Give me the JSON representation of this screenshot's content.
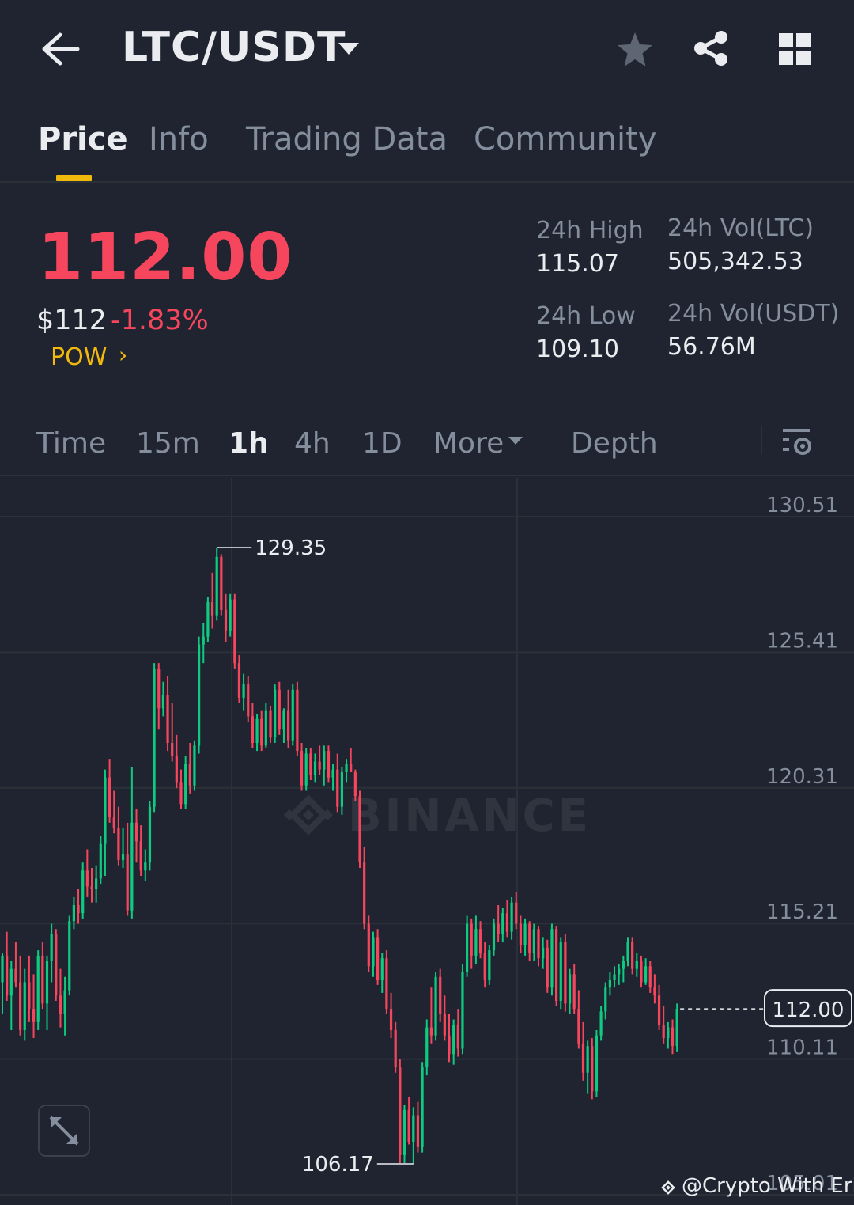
{
  "header": {
    "pair": "LTC/USDT",
    "back_icon": "arrow-left-icon",
    "favorite_icon": "star-icon",
    "share_icon": "share-icon",
    "layout_icon": "grid-icon"
  },
  "tabs": [
    {
      "label": "Price",
      "active": true
    },
    {
      "label": "Info",
      "active": false
    },
    {
      "label": "Trading Data",
      "active": false
    },
    {
      "label": "Community",
      "active": false
    }
  ],
  "ticker": {
    "last_price": "112.00",
    "usd_price": "$112",
    "change": "-1.83%",
    "tag": "POW",
    "tag_chevron": "›",
    "high_label": "24h High",
    "high_value": "115.07",
    "low_label": "24h Low",
    "low_value": "109.10",
    "vol_base_label": "24h Vol(LTC)",
    "vol_base_value": "505,342.53",
    "vol_quote_label": "24h Vol(USDT)",
    "vol_quote_value": "56.76M"
  },
  "intervals": [
    {
      "label": "Time",
      "active": false
    },
    {
      "label": "15m",
      "active": false
    },
    {
      "label": "1h",
      "active": true
    },
    {
      "label": "4h",
      "active": false
    },
    {
      "label": "1D",
      "active": false
    },
    {
      "label": "More",
      "active": false
    },
    {
      "label": "Depth",
      "active": false
    }
  ],
  "colors": {
    "up": "#0ecb81",
    "down": "#f6465d",
    "accent": "#f0b90b",
    "background": "#1f2430"
  },
  "chart_data": {
    "type": "candlestick",
    "y_ticks": [
      "130.51",
      "125.41",
      "120.31",
      "115.21",
      "110.11",
      "105.01"
    ],
    "ylim": [
      105.01,
      130.51
    ],
    "max_label": "129.35",
    "min_label": "106.17",
    "current_price_label": "112.00",
    "watermark": "BINANCE",
    "grid": true,
    "candles": [
      [
        113.0,
        114.1,
        111.8,
        114.0
      ],
      [
        114.0,
        114.9,
        112.3,
        112.5
      ],
      [
        112.5,
        113.8,
        111.2,
        113.5
      ],
      [
        113.5,
        114.5,
        112.8,
        113.0
      ],
      [
        113.0,
        114.0,
        111.0,
        111.2
      ],
      [
        111.2,
        113.5,
        110.8,
        113.0
      ],
      [
        113.0,
        114.0,
        111.5,
        112.0
      ],
      [
        112.0,
        113.3,
        110.9,
        111.5
      ],
      [
        111.5,
        114.2,
        111.2,
        114.0
      ],
      [
        114.0,
        114.5,
        112.0,
        112.2
      ],
      [
        112.2,
        114.0,
        111.2,
        113.8
      ],
      [
        113.8,
        115.2,
        113.0,
        114.8
      ],
      [
        114.8,
        115.0,
        112.3,
        112.5
      ],
      [
        112.5,
        113.5,
        111.3,
        111.8
      ],
      [
        111.8,
        113.2,
        111.0,
        112.7
      ],
      [
        112.7,
        115.5,
        112.5,
        115.3
      ],
      [
        115.3,
        116.2,
        115.0,
        115.9
      ],
      [
        115.9,
        116.5,
        115.2,
        115.6
      ],
      [
        115.6,
        117.5,
        115.4,
        117.2
      ],
      [
        117.2,
        118.0,
        116.2,
        116.6
      ],
      [
        116.6,
        117.3,
        116.0,
        116.5
      ],
      [
        116.5,
        117.4,
        116.0,
        116.9
      ],
      [
        116.9,
        118.5,
        116.7,
        118.2
      ],
      [
        118.2,
        121.0,
        117.0,
        120.7
      ],
      [
        120.7,
        121.4,
        119.0,
        119.2
      ],
      [
        119.2,
        120.2,
        118.6,
        118.8
      ],
      [
        118.8,
        119.6,
        117.4,
        117.6
      ],
      [
        117.6,
        118.8,
        117.3,
        117.8
      ],
      [
        117.8,
        119.0,
        115.5,
        115.7
      ],
      [
        115.7,
        121.1,
        115.4,
        119.0
      ],
      [
        119.0,
        119.5,
        117.5,
        118.3
      ],
      [
        118.3,
        118.9,
        117.0,
        117.2
      ],
      [
        117.2,
        118.0,
        116.8,
        117.5
      ],
      [
        117.5,
        119.8,
        117.2,
        119.6
      ],
      [
        119.6,
        125.0,
        119.4,
        124.8
      ],
      [
        124.8,
        125.0,
        122.5,
        123.3
      ],
      [
        123.3,
        124.3,
        123.0,
        123.8
      ],
      [
        123.8,
        124.5,
        121.7,
        122.0
      ],
      [
        122.0,
        123.5,
        121.3,
        121.5
      ],
      [
        121.5,
        122.3,
        120.3,
        120.5
      ],
      [
        120.5,
        121.0,
        119.5,
        119.7
      ],
      [
        119.7,
        121.5,
        119.5,
        121.2
      ],
      [
        121.2,
        122.0,
        120.1,
        120.4
      ],
      [
        120.4,
        122.1,
        120.2,
        121.9
      ],
      [
        121.9,
        126.0,
        121.6,
        125.7
      ],
      [
        125.7,
        126.5,
        125.0,
        126.0
      ],
      [
        126.0,
        127.5,
        125.8,
        127.3
      ],
      [
        127.3,
        128.4,
        126.3,
        126.8
      ],
      [
        126.8,
        129.35,
        126.6,
        129.0
      ],
      [
        129.0,
        129.1,
        126.8,
        127.0
      ],
      [
        127.0,
        127.6,
        125.8,
        126.2
      ],
      [
        126.2,
        127.6,
        126.0,
        127.4
      ],
      [
        127.4,
        127.6,
        124.8,
        125.0
      ],
      [
        125.0,
        125.3,
        123.5,
        123.7
      ],
      [
        123.7,
        124.6,
        123.2,
        124.2
      ],
      [
        124.2,
        124.5,
        122.8,
        123.0
      ],
      [
        123.0,
        123.5,
        121.8,
        122.0
      ],
      [
        122.0,
        123.1,
        121.7,
        122.9
      ],
      [
        122.9,
        123.2,
        121.7,
        121.9
      ],
      [
        121.9,
        123.5,
        121.8,
        123.2
      ],
      [
        123.2,
        123.4,
        122.0,
        122.2
      ],
      [
        122.2,
        124.2,
        122.0,
        124.0
      ],
      [
        124.0,
        124.3,
        122.3,
        122.5
      ],
      [
        122.5,
        123.3,
        122.0,
        123.2
      ],
      [
        123.2,
        124.0,
        121.8,
        122.1
      ],
      [
        122.1,
        124.2,
        121.9,
        124.0
      ],
      [
        124.0,
        124.3,
        121.5,
        121.7
      ],
      [
        121.7,
        122.0,
        120.2,
        120.4
      ],
      [
        120.4,
        121.8,
        120.2,
        121.6
      ],
      [
        121.6,
        121.8,
        120.6,
        120.8
      ],
      [
        120.8,
        121.6,
        120.5,
        121.3
      ],
      [
        121.3,
        121.9,
        120.8,
        121.0
      ],
      [
        121.0,
        121.9,
        120.4,
        121.7
      ],
      [
        121.7,
        121.9,
        120.5,
        120.7
      ],
      [
        120.7,
        121.2,
        120.2,
        121.0
      ],
      [
        121.0,
        121.6,
        119.4,
        119.6
      ],
      [
        119.6,
        121.1,
        119.3,
        120.9
      ],
      [
        120.9,
        121.4,
        120.5,
        121.2
      ],
      [
        121.2,
        121.8,
        120.9,
        120.9
      ],
      [
        120.9,
        121.0,
        119.8,
        120.0
      ],
      [
        120.0,
        120.2,
        117.3,
        117.5
      ],
      [
        117.5,
        118.1,
        115.0,
        115.2
      ],
      [
        115.2,
        115.5,
        113.4,
        113.6
      ],
      [
        113.6,
        114.9,
        113.2,
        114.7
      ],
      [
        114.7,
        115.0,
        112.9,
        113.1
      ],
      [
        113.1,
        114.1,
        112.6,
        113.9
      ],
      [
        113.9,
        114.2,
        111.8,
        112.0
      ],
      [
        112.0,
        112.6,
        110.9,
        111.2
      ],
      [
        111.2,
        111.5,
        109.6,
        109.8
      ],
      [
        109.8,
        110.1,
        106.2,
        106.5
      ],
      [
        106.5,
        108.4,
        106.2,
        108.2
      ],
      [
        108.2,
        108.7,
        106.9,
        107.0
      ],
      [
        107.0,
        108.3,
        106.17,
        108.0
      ],
      [
        108.0,
        108.5,
        106.6,
        106.8
      ],
      [
        106.8,
        110.0,
        106.6,
        109.8
      ],
      [
        109.8,
        111.6,
        109.5,
        111.3
      ],
      [
        111.3,
        112.8,
        110.7,
        111.0
      ],
      [
        111.0,
        113.4,
        110.8,
        113.2
      ],
      [
        113.2,
        113.5,
        111.5,
        111.8
      ],
      [
        111.8,
        112.5,
        110.8,
        111.0
      ],
      [
        111.0,
        111.8,
        110.0,
        110.3
      ],
      [
        110.3,
        111.6,
        109.9,
        111.4
      ],
      [
        111.4,
        112.0,
        110.2,
        110.5
      ],
      [
        110.5,
        113.7,
        110.3,
        113.4
      ],
      [
        113.4,
        115.5,
        113.2,
        115.2
      ],
      [
        115.2,
        115.4,
        113.5,
        114.0
      ],
      [
        114.0,
        115.5,
        113.7,
        115.0
      ],
      [
        115.0,
        115.3,
        113.9,
        114.1
      ],
      [
        114.1,
        114.5,
        112.8,
        113.1
      ],
      [
        113.1,
        114.4,
        112.9,
        114.2
      ],
      [
        114.2,
        115.4,
        114.0,
        115.2
      ],
      [
        115.2,
        115.9,
        114.5,
        114.8
      ],
      [
        114.8,
        115.8,
        114.5,
        115.6
      ],
      [
        115.6,
        116.1,
        114.7,
        114.9
      ],
      [
        114.9,
        116.2,
        114.6,
        116.0
      ],
      [
        116.0,
        116.4,
        115.0,
        115.2
      ],
      [
        115.2,
        115.5,
        114.1,
        114.4
      ],
      [
        114.4,
        115.4,
        114.0,
        115.2
      ],
      [
        115.2,
        115.3,
        113.8,
        114.1
      ],
      [
        114.1,
        115.2,
        113.8,
        115.0
      ],
      [
        115.0,
        115.1,
        113.6,
        113.9
      ],
      [
        113.9,
        114.7,
        113.5,
        114.3
      ],
      [
        114.3,
        114.6,
        112.6,
        112.8
      ],
      [
        112.8,
        115.2,
        112.5,
        115.0
      ],
      [
        115.0,
        115.1,
        112.1,
        112.3
      ],
      [
        112.3,
        114.7,
        112.0,
        114.5
      ],
      [
        114.5,
        114.8,
        111.9,
        112.2
      ],
      [
        112.2,
        113.5,
        111.8,
        113.3
      ],
      [
        113.3,
        113.7,
        111.8,
        112.0
      ],
      [
        112.0,
        112.7,
        110.5,
        110.7
      ],
      [
        110.7,
        111.5,
        109.3,
        109.6
      ],
      [
        109.6,
        110.8,
        108.8,
        110.6
      ],
      [
        110.6,
        110.9,
        108.6,
        108.9
      ],
      [
        108.9,
        111.2,
        108.7,
        111.0
      ],
      [
        111.0,
        112.1,
        110.8,
        111.9
      ],
      [
        111.9,
        113.0,
        111.6,
        112.8
      ],
      [
        112.8,
        113.4,
        112.5,
        113.1
      ],
      [
        113.1,
        113.6,
        112.8,
        113.3
      ],
      [
        113.3,
        113.7,
        112.9,
        113.5
      ],
      [
        113.5,
        114.0,
        113.0,
        113.8
      ],
      [
        113.8,
        114.7,
        113.6,
        114.5
      ],
      [
        114.5,
        114.7,
        113.3,
        113.5
      ],
      [
        113.5,
        114.1,
        113.2,
        113.8
      ],
      [
        113.8,
        114.0,
        112.8,
        113.0
      ],
      [
        113.0,
        113.9,
        112.9,
        113.6
      ],
      [
        113.6,
        113.8,
        112.6,
        112.8
      ],
      [
        112.8,
        113.3,
        112.2,
        112.5
      ],
      [
        112.5,
        112.9,
        111.2,
        111.4
      ],
      [
        111.4,
        112.1,
        110.7,
        110.9
      ],
      [
        110.9,
        111.5,
        110.5,
        111.3
      ],
      [
        111.3,
        111.6,
        110.3,
        110.6
      ],
      [
        110.6,
        112.2,
        110.4,
        112.0
      ]
    ]
  },
  "footer": {
    "expand_icon": "expand-icon",
    "credit": "@Crypto With Erik"
  }
}
